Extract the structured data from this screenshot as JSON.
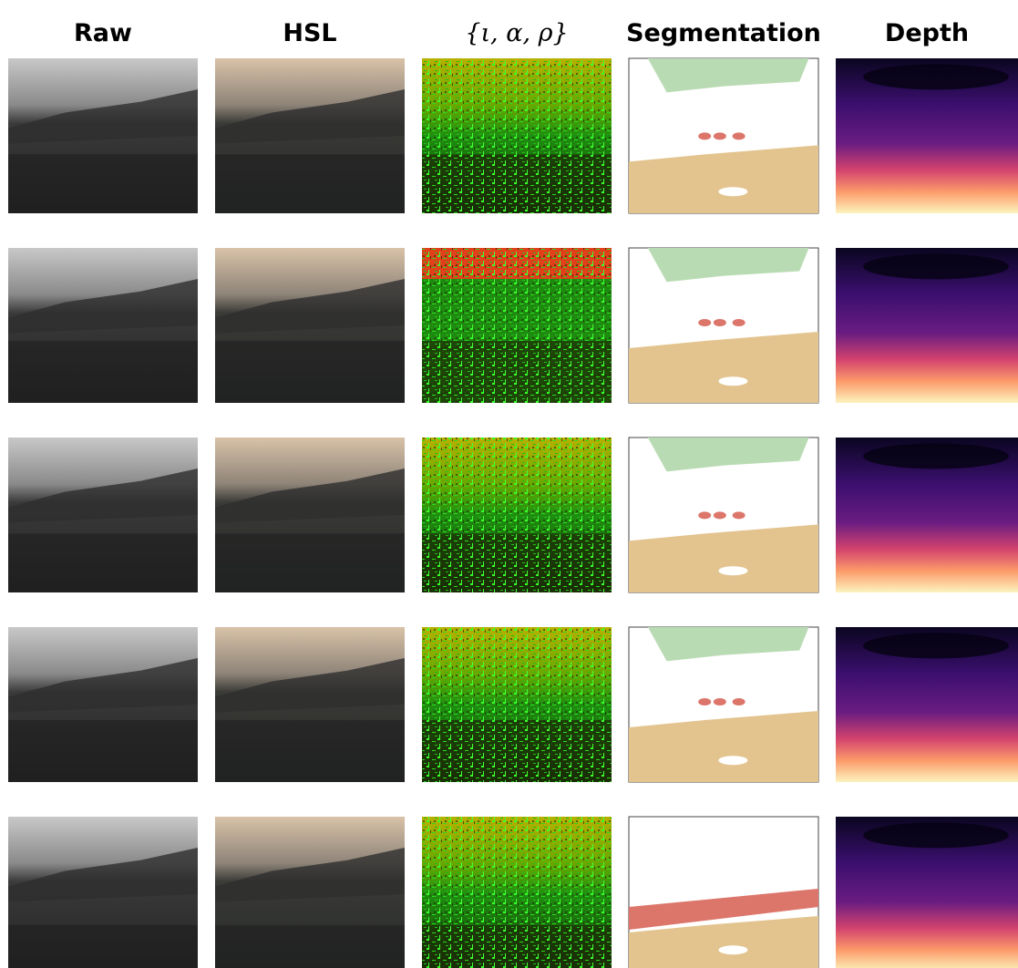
{
  "header": {
    "columns": [
      "Raw",
      "HSL",
      "{ι, α, ρ}",
      "Segmentation",
      "Depth"
    ]
  }
}
